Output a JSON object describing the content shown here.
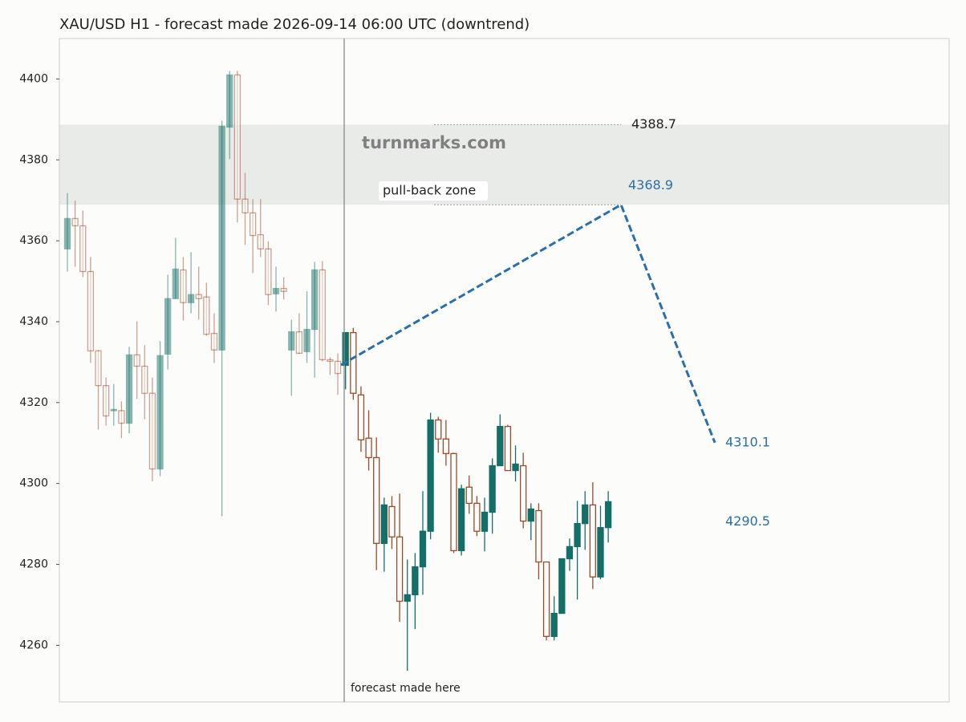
{
  "chart_data": {
    "type": "candlestick",
    "title": "XAU/USD H1 - forecast made 2026-09-14 06:00 UTC (downtrend)",
    "ylim": [
      4246,
      4410
    ],
    "yticks": [
      4260,
      4280,
      4300,
      4320,
      4340,
      4360,
      4380,
      4400
    ],
    "up_color": "#136f67",
    "down_color": "#9c4a2c",
    "history": {
      "open": [
        4358.0,
        4365.5,
        4363.7,
        4352.4,
        4332.8,
        4324.2,
        4318.0,
        4318.0,
        4314.9,
        4331.8,
        4329.0,
        4322.3,
        4303.6,
        4332.0,
        4345.7,
        4352.8,
        4344.7,
        4346.7,
        4346.1,
        4337.1,
        4333.0,
        4388.1,
        4401.0,
        4370.3,
        4366.9,
        4361.5,
        4358.0,
        4346.9,
        4348.2,
        4333.0,
        4337.5,
        4332.6,
        4338.1,
        4352.8,
        4330.6,
        4330.2
      ],
      "high": [
        4371.8,
        4369.9,
        4367.5,
        4356.0,
        4333.0,
        4326.2,
        4324.6,
        4320.3,
        4333.8,
        4340.1,
        4334.2,
        4326.2,
        4335.2,
        4351.6,
        4360.7,
        4356.0,
        4357.2,
        4353.6,
        4349.6,
        4342.1,
        4389.7,
        4402.0,
        4402.0,
        4376.8,
        4370.3,
        4370.3,
        4359.9,
        4353.6,
        4351.0,
        4340.5,
        4342.1,
        4347.5,
        4354.8,
        4355.0,
        4331.2,
        4332.2
      ],
      "low": [
        4352.4,
        4353.6,
        4351.0,
        4329.8,
        4313.3,
        4314.3,
        4314.3,
        4311.2,
        4312.4,
        4320.9,
        4315.9,
        4300.5,
        4301.8,
        4328.2,
        4345.7,
        4340.3,
        4342.1,
        4340.5,
        4336.5,
        4329.8,
        4291.9,
        4380.2,
        4364.5,
        4359.0,
        4352.0,
        4356.0,
        4344.1,
        4342.5,
        4345.5,
        4321.7,
        4332.0,
        4329.8,
        4326.2,
        4330.2,
        4326.8,
        4321.9
      ],
      "close": [
        4365.5,
        4363.7,
        4352.4,
        4332.8,
        4324.2,
        4316.7,
        4318.3,
        4314.9,
        4331.8,
        4329.0,
        4322.3,
        4303.6,
        4331.6,
        4345.7,
        4353.0,
        4344.7,
        4346.7,
        4345.7,
        4336.9,
        4333.0,
        4388.3,
        4401.0,
        4370.3,
        4366.9,
        4361.3,
        4358.0,
        4346.7,
        4348.2,
        4347.5,
        4337.5,
        4332.2,
        4338.1,
        4352.8,
        4330.6,
        4330.2,
        4327.2
      ]
    },
    "actual": {
      "open": [
        4329.2,
        4337.3,
        4321.9,
        4311.2,
        4306.4,
        4285.2,
        4294.3,
        4286.8,
        4270.9,
        4272.5,
        4279.4,
        4288.2,
        4315.7,
        4311.0,
        4307.4,
        4283.4,
        4299.1,
        4295.1,
        4288.2,
        4292.9,
        4304.4,
        4314.1,
        4303.2,
        4304.4,
        4290.7,
        4293.3,
        4280.6,
        4262.2,
        4267.9,
        4281.4,
        4284.4,
        4290.1,
        4294.7,
        4276.9,
        4289.1
      ],
      "high": [
        4337.3,
        4338.5,
        4324.0,
        4318.1,
        4311.4,
        4296.5,
        4296.9,
        4297.5,
        4281.2,
        4282.8,
        4298.1,
        4317.5,
        4316.5,
        4315.7,
        4307.6,
        4299.7,
        4302.0,
        4296.9,
        4296.5,
        4306.2,
        4317.1,
        4314.5,
        4309.4,
        4307.6,
        4295.1,
        4295.1,
        4280.6,
        4272.1,
        4281.4,
        4286.4,
        4295.7,
        4298.1,
        4300.3,
        4294.5,
        4298.1
      ],
      "low": [
        4323.3,
        4320.7,
        4307.8,
        4303.2,
        4278.6,
        4278.2,
        4283.8,
        4265.8,
        4253.7,
        4264.0,
        4272.5,
        4286.2,
        4307.6,
        4304.4,
        4282.8,
        4282.2,
        4292.5,
        4287.0,
        4283.2,
        4287.6,
        4304.4,
        4303.2,
        4300.5,
        4288.9,
        4286.0,
        4276.3,
        4261.2,
        4261.2,
        4267.9,
        4278.4,
        4271.3,
        4283.6,
        4273.9,
        4276.3,
        4285.4
      ],
      "close": [
        4337.3,
        4322.3,
        4310.8,
        4306.4,
        4285.2,
        4294.7,
        4286.8,
        4270.9,
        4272.5,
        4279.4,
        4288.2,
        4315.7,
        4311.0,
        4307.4,
        4283.4,
        4298.7,
        4295.1,
        4288.2,
        4292.9,
        4304.4,
        4314.1,
        4303.2,
        4304.8,
        4290.7,
        4293.7,
        4280.6,
        4262.2,
        4267.9,
        4281.4,
        4284.4,
        4290.1,
        4294.7,
        4276.9,
        4289.1,
        4295.5
      ]
    },
    "forecast": {
      "color": "#2a6fa8",
      "values": [
        4329.3,
        4368.9,
        4310.1
      ]
    },
    "zone": {
      "label": "pull-back zone",
      "low": 4368.9,
      "high": 4388.7
    },
    "target": 4290.5,
    "watermark": "turnmarks.com",
    "annotation": "forecast made here"
  }
}
